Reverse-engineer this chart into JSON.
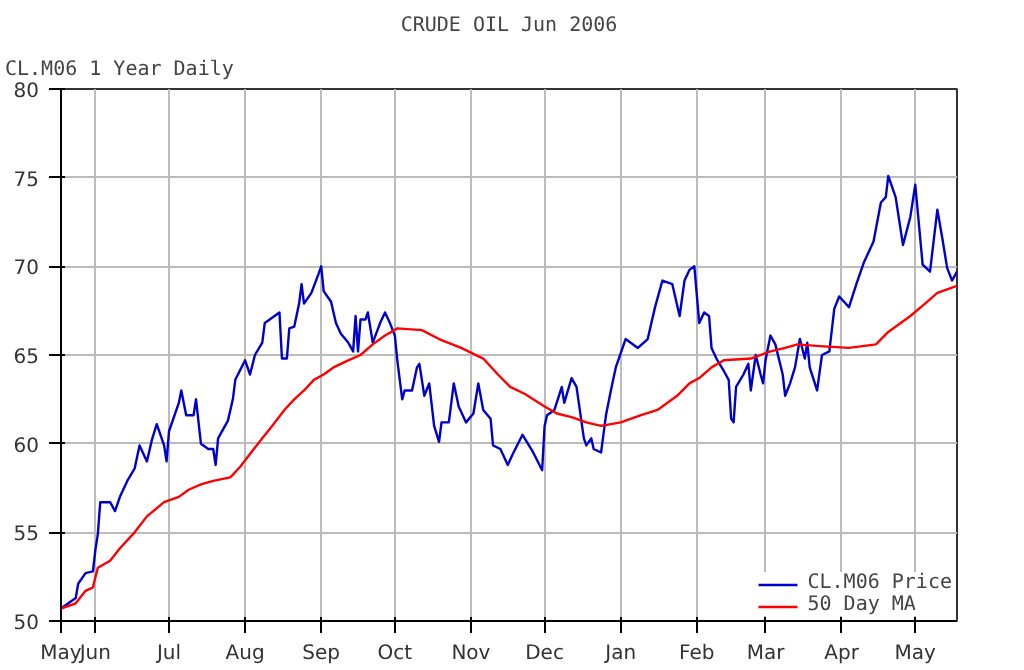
{
  "chart_data": {
    "type": "line",
    "title": "CRUDE OIL Jun 2006",
    "subtitle": "CL.M06 1 Year Daily",
    "xlim": [
      "2005-05-18",
      "2006-05-18"
    ],
    "xticks": [
      {
        "value": "2005-05-18",
        "label": "May"
      },
      {
        "value": "2005-06-01",
        "label": "Jun"
      },
      {
        "value": "2005-07-01",
        "label": "Jul"
      },
      {
        "value": "2005-08-01",
        "label": "Aug"
      },
      {
        "value": "2005-09-01",
        "label": "Sep"
      },
      {
        "value": "2005-10-01",
        "label": "Oct"
      },
      {
        "value": "2005-11-01",
        "label": "Nov"
      },
      {
        "value": "2005-12-01",
        "label": "Dec"
      },
      {
        "value": "2006-01-01",
        "label": "Jan"
      },
      {
        "value": "2006-02-01",
        "label": "Feb"
      },
      {
        "value": "2006-03-01",
        "label": "Mar"
      },
      {
        "value": "2006-04-01",
        "label": "Apr"
      },
      {
        "value": "2006-05-01",
        "label": "May"
      }
    ],
    "ylim": [
      50,
      80
    ],
    "yticks": [
      50,
      55,
      60,
      65,
      70,
      75,
      80
    ],
    "grid": true,
    "legend": "bottom right",
    "line_style": "solid",
    "series": [
      {
        "name": "CL.M06 Price",
        "color": "#0000cc",
        "x": [
          "2005-05-18",
          "2005-05-21",
          "2005-05-24",
          "2005-05-25",
          "2005-05-28",
          "2005-05-31",
          "2005-06-01",
          "2005-06-02",
          "2005-06-03",
          "2005-06-07",
          "2005-06-09",
          "2005-06-11",
          "2005-06-14",
          "2005-06-17",
          "2005-06-19",
          "2005-06-22",
          "2005-06-24",
          "2005-06-26",
          "2005-06-29",
          "2005-06-30",
          "2005-07-01",
          "2005-07-05",
          "2005-07-06",
          "2005-07-08",
          "2005-07-11",
          "2005-07-12",
          "2005-07-14",
          "2005-07-17",
          "2005-07-19",
          "2005-07-20",
          "2005-07-21",
          "2005-07-25",
          "2005-07-27",
          "2005-07-28",
          "2005-08-01",
          "2005-08-03",
          "2005-08-05",
          "2005-08-08",
          "2005-08-09",
          "2005-08-15",
          "2005-08-16",
          "2005-08-18",
          "2005-08-19",
          "2005-08-21",
          "2005-08-23",
          "2005-08-24",
          "2005-08-25",
          "2005-08-28",
          "2005-08-31",
          "2005-09-01",
          "2005-09-02",
          "2005-09-05",
          "2005-09-07",
          "2005-09-09",
          "2005-09-12",
          "2005-09-14",
          "2005-09-15",
          "2005-09-16",
          "2005-09-17",
          "2005-09-19",
          "2005-09-20",
          "2005-09-22",
          "2005-09-25",
          "2005-09-27",
          "2005-09-29",
          "2005-10-01",
          "2005-10-02",
          "2005-10-04",
          "2005-10-05",
          "2005-10-08",
          "2005-10-10",
          "2005-10-11",
          "2005-10-13",
          "2005-10-15",
          "2005-10-17",
          "2005-10-19",
          "2005-10-20",
          "2005-10-23",
          "2005-10-25",
          "2005-10-27",
          "2005-10-30",
          "2005-11-02",
          "2005-11-04",
          "2005-11-06",
          "2005-11-09",
          "2005-11-10",
          "2005-11-13",
          "2005-11-16",
          "2005-11-18",
          "2005-11-22",
          "2005-11-26",
          "2005-11-30",
          "2005-12-01",
          "2005-12-02",
          "2005-12-05",
          "2005-12-08",
          "2005-12-09",
          "2005-12-12",
          "2005-12-14",
          "2005-12-17",
          "2005-12-18",
          "2005-12-20",
          "2005-12-21",
          "2005-12-24",
          "2005-12-26",
          "2005-12-28",
          "2005-12-30",
          "2006-01-03",
          "2006-01-08",
          "2006-01-12",
          "2006-01-15",
          "2006-01-18",
          "2006-01-22",
          "2006-01-25",
          "2006-01-27",
          "2006-01-29",
          "2006-01-31",
          "2006-02-02",
          "2006-02-04",
          "2006-02-06",
          "2006-02-07",
          "2006-02-09",
          "2006-02-12",
          "2006-02-14",
          "2006-02-15",
          "2006-02-16",
          "2006-02-17",
          "2006-02-20",
          "2006-02-22",
          "2006-02-23",
          "2006-02-25",
          "2006-02-27",
          "2006-02-28",
          "2006-03-01",
          "2006-03-03",
          "2006-03-05",
          "2006-03-08",
          "2006-03-09",
          "2006-03-11",
          "2006-03-13",
          "2006-03-15",
          "2006-03-17",
          "2006-03-18",
          "2006-03-19",
          "2006-03-22",
          "2006-03-24",
          "2006-03-27",
          "2006-03-29",
          "2006-03-31",
          "2006-04-04",
          "2006-04-07",
          "2006-04-10",
          "2006-04-14",
          "2006-04-17",
          "2006-04-19",
          "2006-04-20",
          "2006-04-23",
          "2006-04-26",
          "2006-04-29",
          "2006-05-01",
          "2006-05-04",
          "2006-05-07",
          "2006-05-10",
          "2006-05-12",
          "2006-05-14",
          "2006-05-16",
          "2006-05-18"
        ],
        "values": [
          50.7,
          51.0,
          51.3,
          52.1,
          52.7,
          52.8,
          54.0,
          54.9,
          56.7,
          56.7,
          56.2,
          57.0,
          57.9,
          58.6,
          59.9,
          59.0,
          60.2,
          61.1,
          59.9,
          59.0,
          60.7,
          62.3,
          63.0,
          61.6,
          61.6,
          62.5,
          60.0,
          59.7,
          59.7,
          58.8,
          60.3,
          61.3,
          62.5,
          63.6,
          64.7,
          63.9,
          65.0,
          65.7,
          66.8,
          67.4,
          64.8,
          64.8,
          66.5,
          66.6,
          67.9,
          69.0,
          67.9,
          68.5,
          69.6,
          70.0,
          68.6,
          68.0,
          66.8,
          66.2,
          65.7,
          65.2,
          67.2,
          65.2,
          67.0,
          67.0,
          67.4,
          65.7,
          66.8,
          67.4,
          66.8,
          66.1,
          64.7,
          62.5,
          63.0,
          63.0,
          64.3,
          64.5,
          62.7,
          63.4,
          61.0,
          60.1,
          61.2,
          61.2,
          63.4,
          62.1,
          61.2,
          61.7,
          63.4,
          61.9,
          61.4,
          59.9,
          59.7,
          58.8,
          59.4,
          60.5,
          59.6,
          58.5,
          61.0,
          61.6,
          61.9,
          63.2,
          62.3,
          63.7,
          63.2,
          60.3,
          59.9,
          60.3,
          59.7,
          59.5,
          61.6,
          63.0,
          64.3,
          65.9,
          65.4,
          65.9,
          67.7,
          69.2,
          69.0,
          67.2,
          69.2,
          69.8,
          70.0,
          66.8,
          67.4,
          67.2,
          65.4,
          64.8,
          64.1,
          63.6,
          61.4,
          61.2,
          63.2,
          63.9,
          64.5,
          63.0,
          65.0,
          63.9,
          63.4,
          64.7,
          66.1,
          65.6,
          63.9,
          62.7,
          63.4,
          64.3,
          65.9,
          64.8,
          65.7,
          64.3,
          63.0,
          65.0,
          65.2,
          67.6,
          68.3,
          67.7,
          69.0,
          70.2,
          71.4,
          73.6,
          73.9,
          75.1,
          73.9,
          71.2,
          72.8,
          74.6,
          70.1,
          69.7,
          73.2,
          71.6,
          69.9,
          69.2,
          69.7
        ]
      },
      {
        "name": "50 Day MA",
        "color": "#ff0000",
        "x": [
          "2005-05-18",
          "2005-05-24",
          "2005-05-28",
          "2005-05-31",
          "2005-06-02",
          "2005-06-07",
          "2005-06-11",
          "2005-06-17",
          "2005-06-22",
          "2005-06-29",
          "2005-07-05",
          "2005-07-09",
          "2005-07-14",
          "2005-07-19",
          "2005-07-26",
          "2005-07-30",
          "2005-08-04",
          "2005-08-08",
          "2005-08-12",
          "2005-08-17",
          "2005-08-21",
          "2005-08-25",
          "2005-08-29",
          "2005-09-02",
          "2005-09-06",
          "2005-09-12",
          "2005-09-17",
          "2005-09-22",
          "2005-09-27",
          "2005-10-02",
          "2005-10-12",
          "2005-10-19",
          "2005-10-28",
          "2005-11-06",
          "2005-11-12",
          "2005-11-17",
          "2005-11-23",
          "2005-12-01",
          "2005-12-06",
          "2005-12-12",
          "2005-12-18",
          "2005-12-24",
          "2006-01-01",
          "2006-01-09",
          "2006-01-16",
          "2006-01-24",
          "2006-01-29",
          "2006-02-02",
          "2006-02-07",
          "2006-02-12",
          "2006-02-23",
          "2006-03-03",
          "2006-03-09",
          "2006-03-14",
          "2006-03-23",
          "2006-04-04",
          "2006-04-15",
          "2006-04-20",
          "2006-04-29",
          "2006-05-05",
          "2006-05-10",
          "2006-05-16",
          "2006-05-18"
        ],
        "values": [
          50.7,
          51.0,
          51.7,
          51.9,
          53.0,
          53.4,
          54.1,
          55.0,
          55.9,
          56.7,
          57.0,
          57.4,
          57.7,
          57.9,
          58.1,
          58.7,
          59.6,
          60.3,
          61.0,
          61.9,
          62.5,
          63.0,
          63.6,
          63.9,
          64.3,
          64.7,
          65.0,
          65.6,
          66.1,
          66.5,
          66.4,
          65.9,
          65.4,
          64.8,
          63.9,
          63.2,
          62.8,
          62.1,
          61.7,
          61.5,
          61.2,
          61.0,
          61.2,
          61.6,
          61.9,
          62.7,
          63.4,
          63.7,
          64.3,
          64.7,
          64.8,
          65.2,
          65.4,
          65.6,
          65.5,
          65.4,
          65.6,
          66.3,
          67.2,
          67.9,
          68.5,
          68.8,
          68.9
        ]
      }
    ]
  }
}
